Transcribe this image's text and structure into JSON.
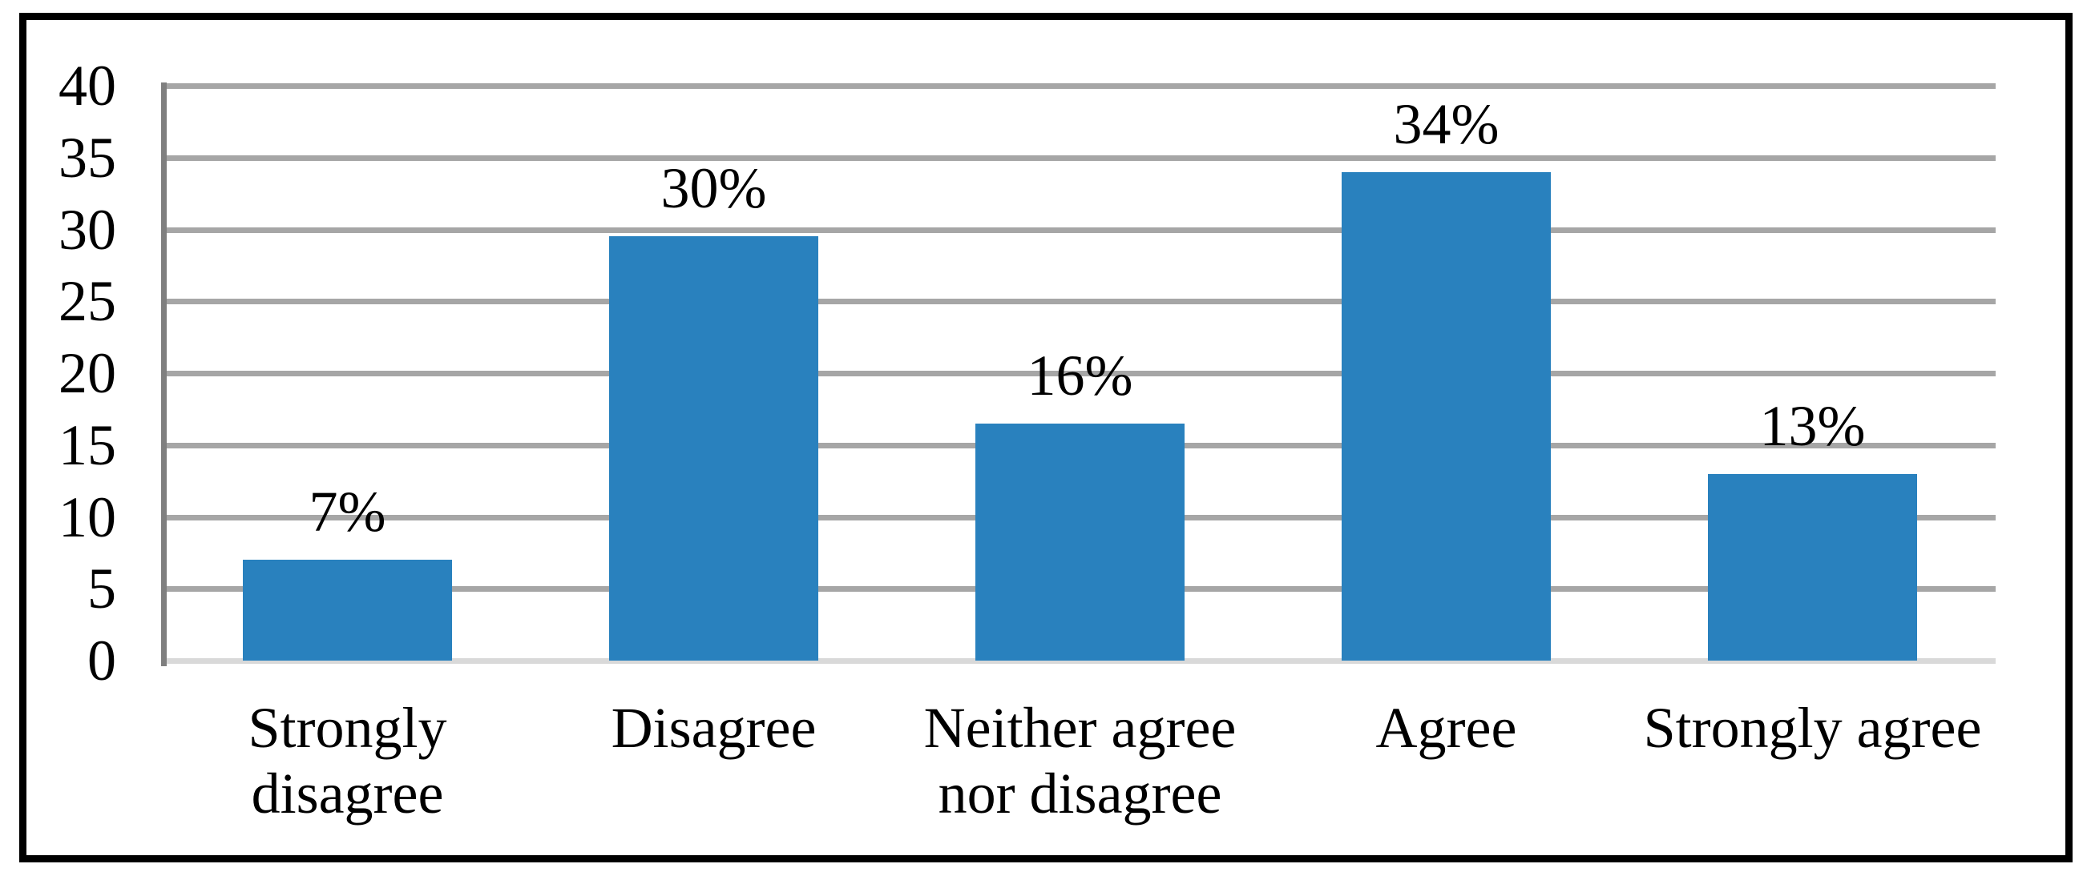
{
  "chart_data": {
    "type": "bar",
    "title": "",
    "xlabel": "",
    "ylabel": "",
    "categories": [
      "Strongly disagree",
      "Disagree",
      "Neither agree nor disagree",
      "Agree",
      "Strongly agree"
    ],
    "category_lines": [
      [
        "Strongly",
        "disagree"
      ],
      [
        "Disagree"
      ],
      [
        "Neither agree",
        "nor disagree"
      ],
      [
        "Agree"
      ],
      [
        "Strongly agree"
      ]
    ],
    "values": [
      7,
      29.5,
      16.5,
      34,
      13
    ],
    "data_labels": [
      "7%",
      "30%",
      "16%",
      "34%",
      "13%"
    ],
    "yticks": [
      0,
      5,
      10,
      15,
      20,
      25,
      30,
      35,
      40
    ],
    "ylim": [
      0,
      40
    ],
    "grid": true,
    "legend": false,
    "colors": {
      "bar": "#2981BE",
      "gridline": "#A6A6A6",
      "baseline": "#D9D9D9",
      "axis_line": "#7F7F7F",
      "frame": "#000000",
      "text": "#000000",
      "background": "#FFFFFF"
    }
  }
}
